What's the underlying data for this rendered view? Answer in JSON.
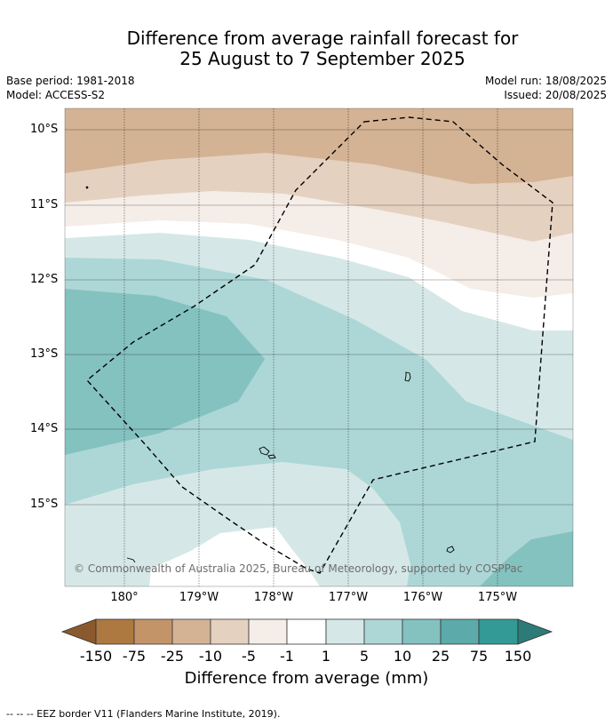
{
  "title": {
    "line1": "Difference from average rainfall forecast for",
    "line2": "25 August to 7 September 2025"
  },
  "meta": {
    "base_period": "Base period: 1981-2018",
    "model": "Model: ACCESS-S2",
    "model_run": "Model run: 18/08/2025",
    "issued": "Issued: 20/08/2025"
  },
  "map": {
    "lat_labels": [
      "10°S",
      "11°S",
      "12°S",
      "13°S",
      "14°S",
      "15°S"
    ],
    "lon_labels": [
      "180°",
      "179°W",
      "178°W",
      "177°W",
      "176°W",
      "175°W"
    ],
    "copyright": "© Commonwealth of Australia 2025, Bureau of Meteorology, supported by COSPPac"
  },
  "colorbar": {
    "label": "Difference from average (mm)",
    "ticks": [
      "-150",
      "-75",
      "-25",
      "-10",
      "-5",
      "-1",
      "1",
      "5",
      "10",
      "25",
      "75",
      "150"
    ],
    "colors": {
      "lt_-150": "#8a5a2e",
      "-150_-75": "#ae7841",
      "-75_-25": "#c49469",
      "-25_-10": "#d4b394",
      "-10_-5": "#e5d1c0",
      "-5_-1": "#f5ede7",
      "-1_1": "#ffffff",
      "1_5": "#d5e8e7",
      "5_10": "#add7d6",
      "10_25": "#84c2c0",
      "25_75": "#5cabaa",
      "75_150": "#339a96",
      "gt_150": "#2d7b78"
    }
  },
  "footer": {
    "legend_line": "-- -- -- EEZ border V11 (Flanders Marine Institute, 2019)."
  }
}
